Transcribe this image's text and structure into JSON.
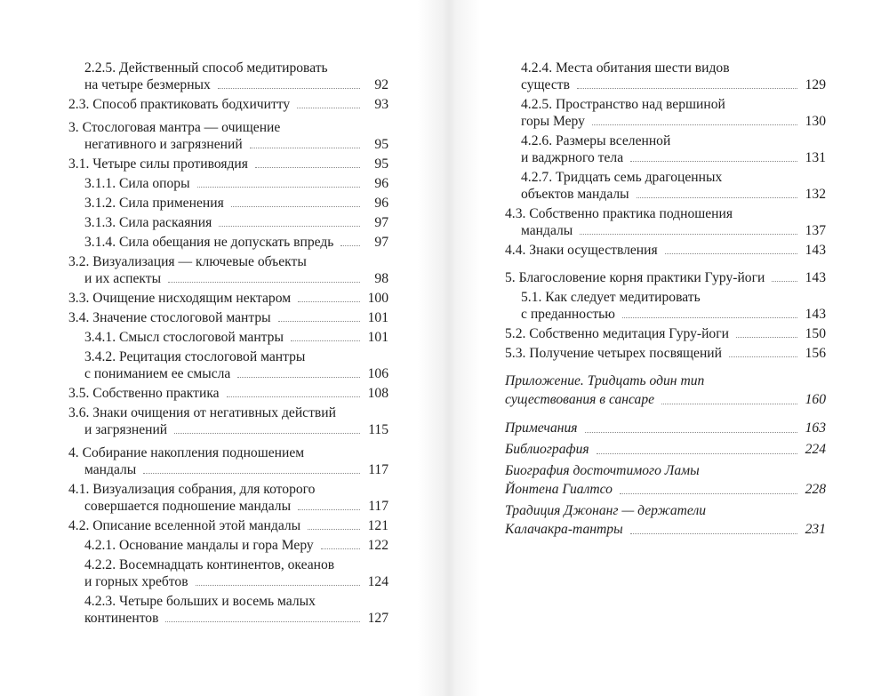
{
  "left_page": [
    {
      "level": 2,
      "lines": [
        "2.2.5. Действенный способ медитировать",
        "на четыре безмерных"
      ],
      "page": "92"
    },
    {
      "level": 1,
      "lines": [
        "2.3. Способ практиковать бодхичитту"
      ],
      "page": "93"
    },
    {
      "level": 1,
      "gap": true,
      "lines": [
        "3. Стослоговая мантра — очищение",
        "негативного и загрязнений"
      ],
      "page": "95"
    },
    {
      "level": 1,
      "lines": [
        "3.1. Четыре силы противоядия"
      ],
      "page": "95"
    },
    {
      "level": 2,
      "lines": [
        "3.1.1. Сила опоры"
      ],
      "page": "96"
    },
    {
      "level": 2,
      "lines": [
        "3.1.2. Сила применения"
      ],
      "page": "96"
    },
    {
      "level": 2,
      "lines": [
        "3.1.3. Сила раскаяния"
      ],
      "page": "97"
    },
    {
      "level": 2,
      "lines": [
        "3.1.4. Сила обещания не допускать впредь"
      ],
      "page": "97"
    },
    {
      "level": 1,
      "lines": [
        "3.2. Визуализация — ключевые объекты",
        "и их аспекты"
      ],
      "page": "98"
    },
    {
      "level": 1,
      "lines": [
        "3.3. Очищение нисходящим нектаром"
      ],
      "page": "100"
    },
    {
      "level": 1,
      "lines": [
        "3.4. Значение стослоговой мантры"
      ],
      "page": "101"
    },
    {
      "level": 2,
      "lines": [
        "3.4.1. Смысл стослоговой мантры"
      ],
      "page": "101"
    },
    {
      "level": 2,
      "lines": [
        "3.4.2. Рецитация стослоговой мантры",
        "с пониманием ее смысла"
      ],
      "page": "106"
    },
    {
      "level": 1,
      "lines": [
        "3.5. Собственно практика"
      ],
      "page": "108"
    },
    {
      "level": 1,
      "lines": [
        "3.6. Знаки очищения от негативных действий",
        "и загрязнений"
      ],
      "page": "115"
    },
    {
      "level": 1,
      "gap": true,
      "lines": [
        "4. Собирание накопления подношением",
        "мандалы"
      ],
      "page": "117"
    },
    {
      "level": 1,
      "lines": [
        "4.1. Визуализация собрания, для которого",
        "совершается подношение мандалы"
      ],
      "page": "117"
    },
    {
      "level": 1,
      "lines": [
        "4.2. Описание вселенной этой мандалы"
      ],
      "page": "121"
    },
    {
      "level": 2,
      "lines": [
        "4.2.1. Основание мандалы и гора Меру"
      ],
      "page": "122"
    },
    {
      "level": 2,
      "lines": [
        "4.2.2. Восемнадцать континентов, океанов",
        "и горных хребтов"
      ],
      "page": "124"
    },
    {
      "level": 2,
      "lines": [
        "4.2.3. Четыре больших и восемь малых",
        "континентов"
      ],
      "page": "127"
    }
  ],
  "right_page": [
    {
      "level": 2,
      "lines": [
        "4.2.4. Места обитания шести видов",
        "существ"
      ],
      "page": "129"
    },
    {
      "level": 2,
      "lines": [
        "4.2.5. Пространство над вершиной",
        "горы Меру"
      ],
      "page": "130"
    },
    {
      "level": 2,
      "lines": [
        "4.2.6. Размеры вселенной",
        "и ваджрного тела"
      ],
      "page": "131"
    },
    {
      "level": 2,
      "lines": [
        "4.2.7. Тридцать семь драгоценных",
        "объектов мандалы"
      ],
      "page": "132"
    },
    {
      "level": 1,
      "lines": [
        "4.3. Собственно практика подношения",
        "мандалы"
      ],
      "page": "137"
    },
    {
      "level": 1,
      "lines": [
        "4.4. Знаки осуществления"
      ],
      "page": "143"
    },
    {
      "level": 1,
      "gap2": true,
      "lines": [
        "5. Благословение корня практики Гуру-йоги"
      ],
      "page": "143"
    },
    {
      "level": 2,
      "lines": [
        "5.1. Как следует медитировать",
        "с преданностью"
      ],
      "page": "143"
    },
    {
      "level": 1,
      "lines": [
        "5.2. Собственно медитация Гуру-йоги"
      ],
      "page": "150"
    },
    {
      "level": 1,
      "lines": [
        "5.3. Получение четырех посвящений"
      ],
      "page": "156"
    },
    {
      "level": 0,
      "italic": true,
      "gap": true,
      "lines": [
        "Приложение. Тридцать один тип",
        "существования в сансаре"
      ],
      "page": "160"
    },
    {
      "level": 0,
      "italic": true,
      "gap": true,
      "lines": [
        "Примечания"
      ],
      "page": "163"
    },
    {
      "level": 0,
      "italic": true,
      "lines": [
        "Библиография"
      ],
      "page": "224"
    },
    {
      "level": 0,
      "italic": true,
      "lines": [
        "Биография досточтимого Ламы",
        "Йонтена Гиалтсо"
      ],
      "page": "228"
    },
    {
      "level": 0,
      "italic": true,
      "lines": [
        "Традиция Джонанг — держатели",
        "Калачакра-тантры"
      ],
      "page": "231"
    }
  ]
}
